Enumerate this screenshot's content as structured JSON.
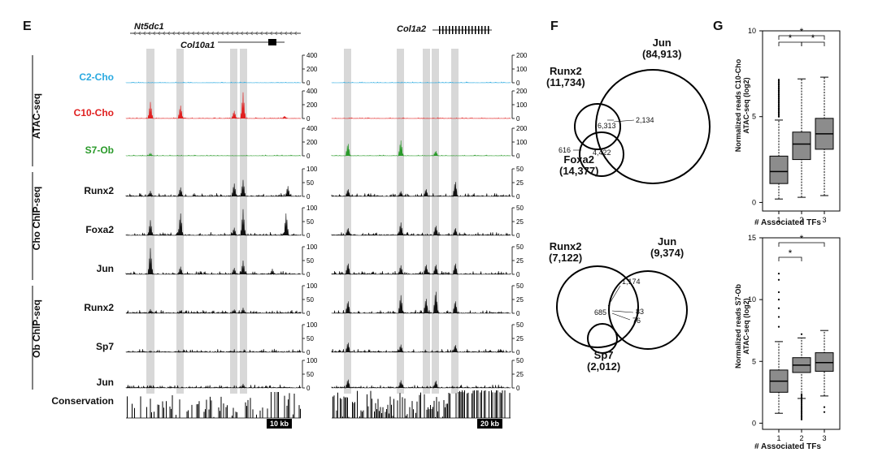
{
  "panels": {
    "E": "E",
    "F": "F",
    "G": "G"
  },
  "genes": {
    "left_top": "Nt5dc1",
    "left_bottom": "Col10a1",
    "right_top": "Col1a2"
  },
  "group_labels": {
    "atac": "ATAC-seq",
    "cho_chip": "Cho ChIP-seq",
    "ob_chip": "Ob ChIP-seq"
  },
  "tracks": [
    {
      "label": "C2-Cho",
      "color": "#29a9e0",
      "group": "atac",
      "ticks_left": [
        "400",
        "200",
        "0"
      ],
      "ticks_right": [
        "200",
        "100",
        "0"
      ]
    },
    {
      "label": "C10-Cho",
      "color": "#e02020",
      "group": "atac",
      "ticks_left": [
        "400",
        "200",
        "0"
      ],
      "ticks_right": [
        "200",
        "100",
        "0"
      ]
    },
    {
      "label": "S7-Ob",
      "color": "#2a9a2a",
      "group": "atac",
      "ticks_left": [
        "400",
        "200",
        "0"
      ],
      "ticks_right": [
        "200",
        "100",
        "0"
      ]
    },
    {
      "label": "Runx2",
      "color": "#111111",
      "group": "cho",
      "ticks_left": [
        "100",
        "50",
        "0"
      ],
      "ticks_right": [
        "50",
        "25",
        "0"
      ]
    },
    {
      "label": "Foxa2",
      "color": "#111111",
      "group": "cho",
      "ticks_left": [
        "100",
        "50",
        "0"
      ],
      "ticks_right": [
        "50",
        "25",
        "0"
      ]
    },
    {
      "label": "Jun",
      "color": "#111111",
      "group": "cho",
      "ticks_left": [
        "100",
        "50",
        "0"
      ],
      "ticks_right": [
        "50",
        "25",
        "0"
      ]
    },
    {
      "label": "Runx2",
      "color": "#111111",
      "group": "ob",
      "ticks_left": [
        "100",
        "50",
        "0"
      ],
      "ticks_right": [
        "50",
        "25",
        "0"
      ]
    },
    {
      "label": "Sp7",
      "color": "#111111",
      "group": "ob",
      "ticks_left": [
        "100",
        "50",
        "0"
      ],
      "ticks_right": [
        "50",
        "25",
        "0"
      ]
    },
    {
      "label": "Jun",
      "color": "#111111",
      "group": "ob",
      "ticks_left": [
        "100",
        "50",
        "0"
      ],
      "ticks_right": [
        "50",
        "25",
        "0"
      ]
    }
  ],
  "conservation": {
    "label": "Conservation",
    "scale_left": "10 kb",
    "scale_right": "20 kb"
  },
  "venn_top": {
    "runx2": "Runx2",
    "runx2_n": "(11,734)",
    "jun": "Jun",
    "jun_n": "(84,913)",
    "foxa2": "Foxa2",
    "foxa2_n": "(14,377)",
    "n_runx2_jun": "6,313",
    "n_all": "4,422",
    "n_foxa2_jun": "2,134",
    "n_runx2_foxa2": "616"
  },
  "venn_bottom": {
    "runx2": "Runx2",
    "runx2_n": "(7,122)",
    "jun": "Jun",
    "jun_n": "(9,374)",
    "sp7": "Sp7",
    "sp7_n": "(2,012)",
    "n_runx2_jun": "1,174",
    "n_all": "685",
    "n_a": "83",
    "n_b": "76"
  },
  "chart_data": [
    {
      "type": "box",
      "ylabel": "Normalized reads C10-Cho ATAC-seq (log2)",
      "xlabel": "# Associated TFs",
      "categories": [
        "1",
        "2",
        "3"
      ],
      "ylim": [
        -0.5,
        10
      ],
      "yticks": [
        "0",
        "5",
        "10"
      ],
      "boxes": [
        {
          "whisker_low": 0.2,
          "q1": 1.1,
          "median": 1.8,
          "q3": 2.7,
          "whisker_high": 4.8
        },
        {
          "whisker_low": 0.3,
          "q1": 2.5,
          "median": 3.4,
          "q3": 4.1,
          "whisker_high": 7.2
        },
        {
          "whisker_low": 0.4,
          "q1": 3.1,
          "median": 4.0,
          "q3": 4.9,
          "whisker_high": 7.3
        }
      ],
      "significance": [
        "*",
        "*",
        "*"
      ]
    },
    {
      "type": "box",
      "ylabel": "Normalized reads S7-Ob ATAC-seq (log2)",
      "xlabel": "# Associated TFs",
      "categories": [
        "1",
        "2",
        "3"
      ],
      "ylim": [
        -0.5,
        15
      ],
      "yticks": [
        "0",
        "5",
        "10",
        "15"
      ],
      "boxes": [
        {
          "whisker_low": 0.8,
          "q1": 2.5,
          "median": 3.4,
          "q3": 4.3,
          "whisker_high": 6.6
        },
        {
          "whisker_low": 2.0,
          "q1": 4.1,
          "median": 4.7,
          "q3": 5.3,
          "whisker_high": 6.9
        },
        {
          "whisker_low": 2.2,
          "q1": 4.2,
          "median": 4.9,
          "q3": 5.7,
          "whisker_high": 7.5
        }
      ],
      "significance": [
        "*",
        "*"
      ]
    }
  ]
}
